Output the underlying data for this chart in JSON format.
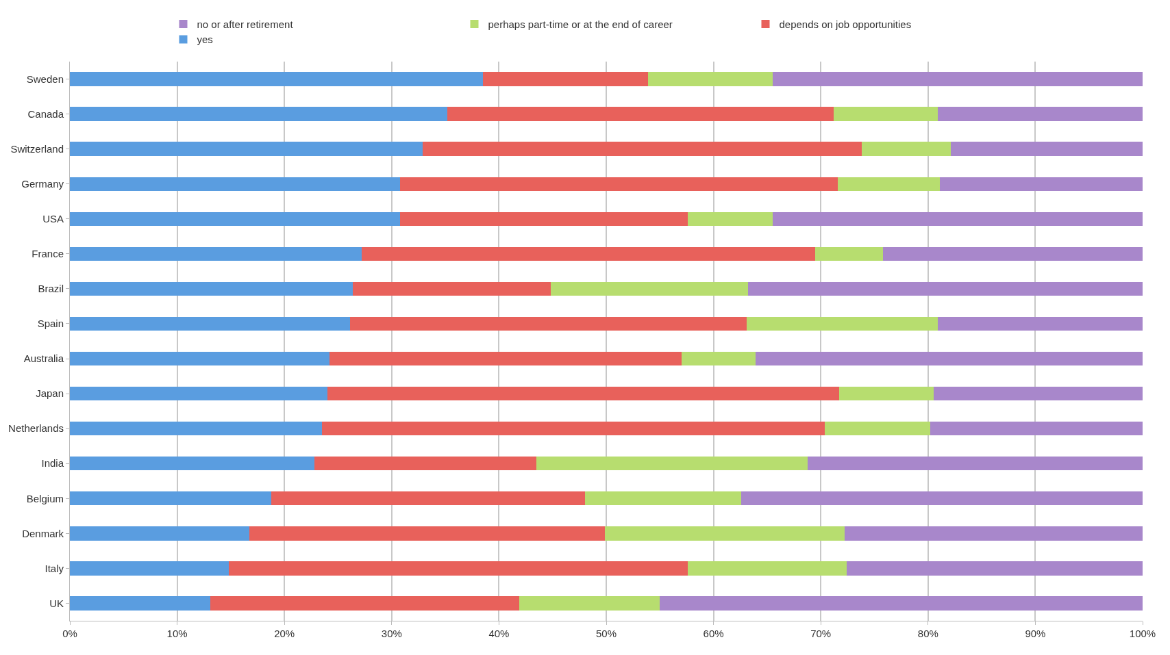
{
  "chart_data": {
    "type": "bar",
    "orientation": "horizontal",
    "stacked": true,
    "categories": [
      "Sweden",
      "Canada",
      "Switzerland",
      "Germany",
      "USA",
      "France",
      "Brazil",
      "Spain",
      "Australia",
      "Japan",
      "Netherlands",
      "India",
      "Belgium",
      "Denmark",
      "Italy",
      "UK"
    ],
    "series": [
      {
        "name": "yes",
        "color": "#5a9de0",
        "values": [
          38.5,
          35.2,
          32.9,
          30.8,
          30.8,
          27.2,
          26.4,
          26.1,
          24.2,
          24.0,
          23.5,
          22.8,
          18.8,
          16.7,
          14.8,
          13.1
        ]
      },
      {
        "name": "depends on job opportunities",
        "color": "#e8615b",
        "values": [
          15.4,
          36.0,
          40.9,
          40.8,
          26.8,
          42.3,
          18.4,
          37.0,
          32.8,
          47.7,
          46.9,
          20.7,
          29.2,
          33.2,
          42.8,
          28.8
        ]
      },
      {
        "name": "perhaps part-time or at the end of career",
        "color": "#b7dd6f",
        "values": [
          11.6,
          9.7,
          8.3,
          9.5,
          7.9,
          6.3,
          18.4,
          17.8,
          6.9,
          8.8,
          9.8,
          25.3,
          14.6,
          22.3,
          14.8,
          13.1
        ]
      },
      {
        "name": "no or after retirement",
        "color": "#a887cb",
        "values": [
          34.5,
          19.1,
          17.9,
          18.9,
          34.5,
          24.2,
          36.8,
          19.1,
          36.1,
          19.5,
          19.8,
          31.2,
          37.4,
          27.8,
          27.6,
          45.0
        ]
      }
    ],
    "xlim": [
      0,
      100
    ],
    "xticks": [
      {
        "value": 0,
        "label": "0%"
      },
      {
        "value": 10,
        "label": "10%"
      },
      {
        "value": 20,
        "label": "20%"
      },
      {
        "value": 30,
        "label": "30%"
      },
      {
        "value": 40,
        "label": "40%"
      },
      {
        "value": 50,
        "label": "50%"
      },
      {
        "value": 60,
        "label": "60%"
      },
      {
        "value": 70,
        "label": "70%"
      },
      {
        "value": 80,
        "label": "80%"
      },
      {
        "value": 90,
        "label": "90%"
      },
      {
        "value": 100,
        "label": "100%"
      }
    ],
    "grid": "x",
    "legend": "top"
  }
}
